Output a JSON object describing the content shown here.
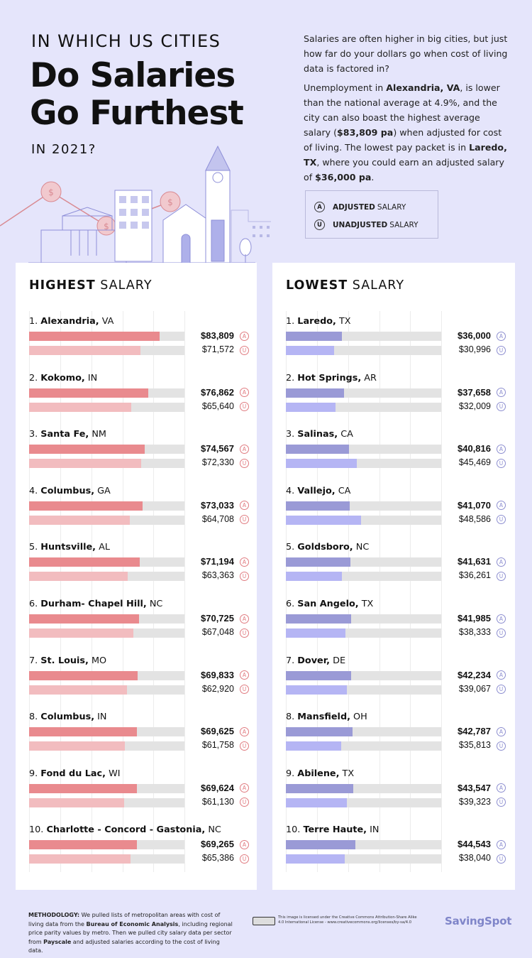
{
  "header": {
    "title_small": "IN WHICH US CITIES",
    "title_big": "Do Salaries Go Furthest",
    "title_year": "IN 2021?",
    "intro_p1": "Salaries are often higher in big cities, but just how far do your dollars go when cost of living data is factored in?",
    "intro_p2_parts": [
      "Unemployment in ",
      "Alexandria, VA",
      ", is lower than the national average at 4.9%, and the city can also boast the highest average salary (",
      "$83,809 pa",
      ") when adjusted for cost of living. The lowest pay packet is in ",
      "Laredo, TX",
      ", where you could earn an adjusted salary of ",
      "$36,000 pa",
      "."
    ]
  },
  "legend": {
    "adjusted_badge": "A",
    "adjusted_bold": "ADJUSTED",
    "adjusted_rest": "SALARY",
    "unadjusted_badge": "U",
    "unadjusted_bold": "UNADJUSTED",
    "unadjusted_rest": "SALARY"
  },
  "colors": {
    "high_adjusted": "#e98a8e",
    "high_unadjusted": "#f2bcbf",
    "low_adjusted": "#9a9ad6",
    "low_unadjusted": "#b5b5f4",
    "high_badge": "#e07b80",
    "low_badge": "#8d8ed0"
  },
  "chart_data": [
    {
      "type": "bar",
      "title_bold": "HIGHEST",
      "title_rest": "SALARY",
      "xlim": [
        0,
        100000
      ],
      "series": [
        {
          "name": "Adjusted salary"
        },
        {
          "name": "Unadjusted salary"
        }
      ],
      "items": [
        {
          "rank": "1.",
          "name": "Alexandria,",
          "state": "VA",
          "adjusted": 83809,
          "adjusted_label": "$83,809",
          "unadjusted": 71572,
          "unadjusted_label": "$71,572"
        },
        {
          "rank": "2.",
          "name": "Kokomo,",
          "state": "IN",
          "adjusted": 76862,
          "adjusted_label": "$76,862",
          "unadjusted": 65640,
          "unadjusted_label": "$65,640"
        },
        {
          "rank": "3.",
          "name": "Santa Fe,",
          "state": "NM",
          "adjusted": 74567,
          "adjusted_label": "$74,567",
          "unadjusted": 72330,
          "unadjusted_label": "$72,330"
        },
        {
          "rank": "4.",
          "name": "Columbus,",
          "state": "GA",
          "adjusted": 73033,
          "adjusted_label": "$73,033",
          "unadjusted": 64708,
          "unadjusted_label": "$64,708"
        },
        {
          "rank": "5.",
          "name": "Huntsville,",
          "state": "AL",
          "adjusted": 71194,
          "adjusted_label": "$71,194",
          "unadjusted": 63363,
          "unadjusted_label": "$63,363"
        },
        {
          "rank": "6.",
          "name": "Durham- Chapel Hill,",
          "state": "NC",
          "adjusted": 70725,
          "adjusted_label": "$70,725",
          "unadjusted": 67048,
          "unadjusted_label": "$67,048"
        },
        {
          "rank": "7.",
          "name": "St. Louis,",
          "state": "MO",
          "adjusted": 69833,
          "adjusted_label": "$69,833",
          "unadjusted": 62920,
          "unadjusted_label": "$62,920"
        },
        {
          "rank": "8.",
          "name": "Columbus,",
          "state": "IN",
          "adjusted": 69625,
          "adjusted_label": "$69,625",
          "unadjusted": 61758,
          "unadjusted_label": "$61,758"
        },
        {
          "rank": "9.",
          "name": "Fond du Lac,",
          "state": "WI",
          "adjusted": 69624,
          "adjusted_label": "$69,624",
          "unadjusted": 61130,
          "unadjusted_label": "$61,130"
        },
        {
          "rank": "10.",
          "name": "Charlotte - Concord - Gastonia,",
          "state": "NC",
          "adjusted": 69265,
          "adjusted_label": "$69,265",
          "unadjusted": 65386,
          "unadjusted_label": "$65,386"
        }
      ]
    },
    {
      "type": "bar",
      "title_bold": "LOWEST",
      "title_rest": "SALARY",
      "xlim": [
        0,
        100000
      ],
      "series": [
        {
          "name": "Adjusted salary"
        },
        {
          "name": "Unadjusted salary"
        }
      ],
      "items": [
        {
          "rank": "1.",
          "name": "Laredo,",
          "state": "TX",
          "adjusted": 36000,
          "adjusted_label": "$36,000",
          "unadjusted": 30996,
          "unadjusted_label": "$30,996"
        },
        {
          "rank": "2.",
          "name": "Hot Springs,",
          "state": "AR",
          "adjusted": 37658,
          "adjusted_label": "$37,658",
          "unadjusted": 32009,
          "unadjusted_label": "$32,009"
        },
        {
          "rank": "3.",
          "name": "Salinas,",
          "state": "CA",
          "adjusted": 40816,
          "adjusted_label": "$40,816",
          "unadjusted": 45469,
          "unadjusted_label": "$45,469"
        },
        {
          "rank": "4.",
          "name": "Vallejo,",
          "state": "CA",
          "adjusted": 41070,
          "adjusted_label": "$41,070",
          "unadjusted": 48586,
          "unadjusted_label": "$48,586"
        },
        {
          "rank": "5.",
          "name": "Goldsboro,",
          "state": "NC",
          "adjusted": 41631,
          "adjusted_label": "$41,631",
          "unadjusted": 36261,
          "unadjusted_label": "$36,261"
        },
        {
          "rank": "6.",
          "name": "San Angelo,",
          "state": "TX",
          "adjusted": 41985,
          "adjusted_label": "$41,985",
          "unadjusted": 38333,
          "unadjusted_label": "$38,333"
        },
        {
          "rank": "7.",
          "name": "Dover,",
          "state": "DE",
          "adjusted": 42234,
          "adjusted_label": "$42,234",
          "unadjusted": 39067,
          "unadjusted_label": "$39,067"
        },
        {
          "rank": "8.",
          "name": "Mansfield,",
          "state": "OH",
          "adjusted": 42787,
          "adjusted_label": "$42,787",
          "unadjusted": 35813,
          "unadjusted_label": "$35,813"
        },
        {
          "rank": "9.",
          "name": "Abilene,",
          "state": "TX",
          "adjusted": 43547,
          "adjusted_label": "$43,547",
          "unadjusted": 39323,
          "unadjusted_label": "$39,323"
        },
        {
          "rank": "10.",
          "name": "Terre Haute,",
          "state": "IN",
          "adjusted": 44543,
          "adjusted_label": "$44,543",
          "unadjusted": 38040,
          "unadjusted_label": "$38,040"
        }
      ]
    }
  ],
  "footer": {
    "methodology_label": "METHODOLOGY:",
    "methodology_parts": [
      " We pulled lists of metropolitan areas with cost of living data from the ",
      "Bureau of Economic Analysis",
      ", including regional price parity values by metro. Then we pulled city salary data per sector from ",
      "Payscale",
      " and adjusted salaries according to the cost of living data."
    ],
    "license": "This image is licensed under the Creative Commons Attribution-Share Alike 4.0 International License - www.creativecommons.org/licenses/by-sa/4.0",
    "brand": "SavingSpot"
  }
}
